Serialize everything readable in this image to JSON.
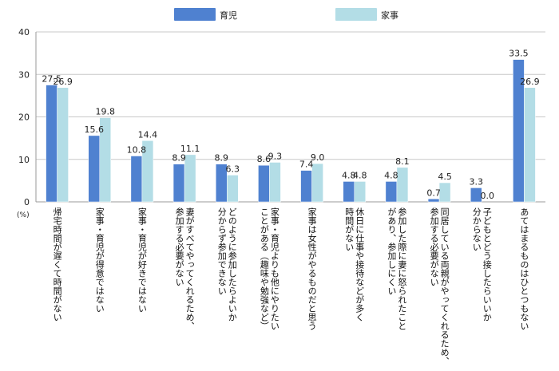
{
  "chart_data": {
    "type": "bar",
    "title": "",
    "xlabel": "",
    "ylabel": "",
    "unit_label": "(%)",
    "ylim": [
      0,
      40
    ],
    "yticks": [
      0,
      10,
      20,
      30,
      40
    ],
    "legend_position": "top",
    "categories": [
      "帰宅時間が遅くて時間がない",
      "家事・育児が得意ではない",
      "家事・育児が好きではない",
      "妻がすべてやってくれるため、参加する必要がない",
      "どのように参加したらよいか分からず参加できない",
      "家事・育児よりも他にやりたいことがある（趣味や勉強など）",
      "家事は女性がやるものだと思う",
      "休日に仕事や接待などが多く時間がない",
      "参加した際に妻に怒られたことがあり、参加しにくい",
      "同居している両親がやってくれるため、参加する必要がない",
      "子どもとどう接したらいいか分からない",
      "あてはまるものはひとつもない"
    ],
    "category_lines": [
      [
        "帰宅時間が遅くて時間がない"
      ],
      [
        "家事・育児が得意ではない"
      ],
      [
        "家事・育児が好きではない"
      ],
      [
        "妻がすべてやってくれるため、",
        "参加する必要がない"
      ],
      [
        "どのように参加したらよいか",
        "分からず参加できない"
      ],
      [
        "家事・育児よりも他にやりたい",
        "ことがある（趣味や勉強など）"
      ],
      [
        "家事は女性がやるものだと思う"
      ],
      [
        "休日に仕事や接待などが多く",
        "時間がない"
      ],
      [
        "参加した際に妻に怒られたこと",
        "があり、参加しにくい"
      ],
      [
        "同居している両親がやってくれるため、",
        "参加する必要がない"
      ],
      [
        "子どもとどう接したらいいか",
        "分からない"
      ],
      [
        "あてはまるものはひとつもない"
      ]
    ],
    "series": [
      {
        "name": "育児",
        "color": "#4f81d0",
        "values": [
          27.5,
          15.6,
          10.8,
          8.9,
          8.9,
          8.6,
          7.4,
          4.8,
          4.8,
          0.7,
          3.3,
          33.5
        ],
        "labels": [
          "27.5",
          "15.6",
          "10.8",
          "8.9",
          "8.9",
          "8.6",
          "7.4",
          "4.8",
          "4.8",
          "0.7",
          "3.3",
          "33.5"
        ]
      },
      {
        "name": "家事",
        "color": "#b3dde6",
        "values": [
          26.9,
          19.8,
          14.4,
          11.1,
          6.3,
          9.3,
          9.0,
          4.8,
          8.1,
          4.5,
          0.0,
          26.9
        ],
        "labels": [
          "26.9",
          "19.8",
          "14.4",
          "11.1",
          "6.3",
          "9.3",
          "9.0",
          "4.8",
          "8.1",
          "4.5",
          "0.0",
          "26.9"
        ]
      }
    ]
  }
}
